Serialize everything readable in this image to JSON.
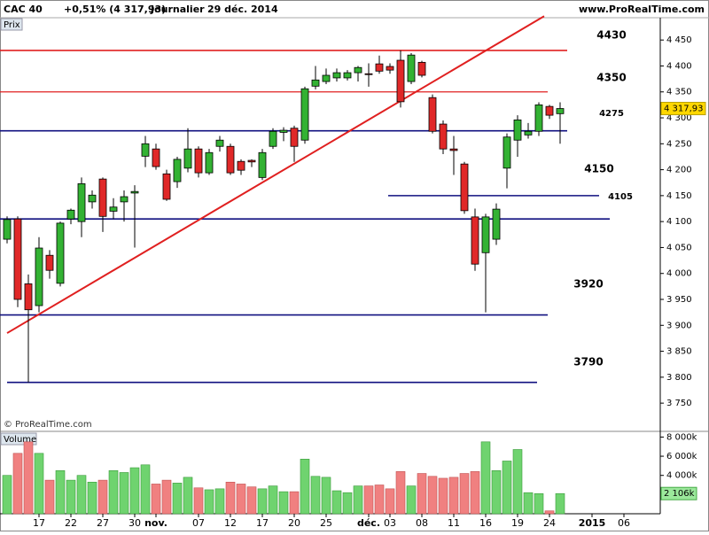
{
  "header": {
    "symbol": "CAC 40",
    "change": "+0,51% (4 317,93)",
    "period": "Journalier",
    "date": "29 déc. 2014",
    "site": "www.ProRealTime.com"
  },
  "chart_data": [
    {
      "type": "candlestick",
      "label": "Prix",
      "watermark": "© ProRealTime.com",
      "up_color": "#33b233",
      "down_color": "#e02828",
      "open": [
        4066,
        4105,
        3980,
        3938,
        4035,
        3981,
        4105,
        4100,
        4138,
        4182,
        4120,
        4138,
        4155,
        4226,
        4240,
        4192,
        4177,
        4203,
        4240,
        4194,
        4245,
        4245,
        4216,
        4218,
        4185,
        4245,
        4272,
        4280,
        4257,
        4361,
        4370,
        4377,
        4377,
        4387,
        4385,
        4404,
        4399,
        4411,
        4370,
        4407,
        4339,
        4288,
        4240,
        4211,
        4109,
        4040,
        4066,
        4203,
        4257,
        4267,
        4274,
        4322,
        4308,
        null,
        null,
        null,
        null,
        null,
        null
      ],
      "high": [
        4110,
        4110,
        3998,
        4070,
        4045,
        4100,
        4125,
        4185,
        4160,
        4185,
        4145,
        4160,
        4170,
        4265,
        4250,
        4200,
        4225,
        4280,
        4245,
        4240,
        4265,
        4250,
        4220,
        4220,
        4240,
        4280,
        4282,
        4285,
        4360,
        4400,
        4395,
        4395,
        4392,
        4400,
        4405,
        4420,
        4405,
        4430,
        4425,
        4410,
        4345,
        4295,
        4265,
        4215,
        4125,
        4115,
        4135,
        4270,
        4305,
        4290,
        4330,
        4325,
        4330,
        null,
        null,
        null,
        null,
        null,
        null
      ],
      "low": [
        4058,
        3935,
        3790,
        3925,
        3990,
        3975,
        4095,
        4070,
        4125,
        4080,
        4105,
        4100,
        4050,
        4205,
        4200,
        4140,
        4165,
        4195,
        4185,
        4190,
        4235,
        4190,
        4190,
        4205,
        4180,
        4240,
        4255,
        4215,
        4250,
        4355,
        4365,
        4370,
        4372,
        4370,
        4360,
        4385,
        4385,
        4320,
        4365,
        4378,
        4270,
        4230,
        4190,
        4115,
        4005,
        3925,
        4055,
        4164,
        4225,
        4260,
        4265,
        4298,
        4250,
        null,
        null,
        null,
        null,
        null,
        null
      ],
      "close": [
        4104,
        3950,
        3930,
        4049,
        4006,
        4097,
        4122,
        4173,
        4151,
        4110,
        4128,
        4148,
        4158,
        4250,
        4206,
        4143,
        4220,
        4240,
        4194,
        4233,
        4257,
        4194,
        4199,
        4215,
        4233,
        4274,
        4276,
        4245,
        4356,
        4373,
        4382,
        4387,
        4387,
        4397,
        4384,
        4390,
        4392,
        4331,
        4421,
        4382,
        4274,
        4240,
        4237,
        4121,
        4018,
        4109,
        4124,
        4263,
        4296,
        4274,
        4325,
        4305,
        4317.93,
        null,
        null,
        null,
        null,
        null,
        null
      ],
      "last_label": "4 317,93",
      "ylim": [
        3699,
        4493
      ],
      "yticks": [
        {
          "value": 3750,
          "label": "3 750"
        },
        {
          "value": 3800,
          "label": "3 800"
        },
        {
          "value": 3850,
          "label": "3 850"
        },
        {
          "value": 3900,
          "label": "3 900"
        },
        {
          "value": 3950,
          "label": "3 950"
        },
        {
          "value": 4000,
          "label": "4 000"
        },
        {
          "value": 4050,
          "label": "4 050"
        },
        {
          "value": 4100,
          "label": "4 100"
        },
        {
          "value": 4150,
          "label": "4 150"
        },
        {
          "value": 4200,
          "label": "4 200"
        },
        {
          "value": 4250,
          "label": "4 250"
        },
        {
          "value": 4300,
          "label": "4 300"
        },
        {
          "value": 4350,
          "label": "4 350"
        },
        {
          "value": 4400,
          "label": "4 400"
        },
        {
          "value": 4450,
          "label": "4 450"
        }
      ],
      "levels": [
        {
          "value": 4430,
          "color": "#e02020"
        },
        {
          "value": 4350,
          "color": "#e02020"
        },
        {
          "value": 4275,
          "color": "#101080"
        },
        {
          "value": 4150,
          "color": "#101080"
        },
        {
          "value": 4105,
          "color": "#101080"
        },
        {
          "value": 3920,
          "color": "#101080"
        },
        {
          "value": 3790,
          "color": "#101080"
        }
      ],
      "trendline": {
        "values": [
          3885,
          4496
        ],
        "color": "#e02020"
      }
    },
    {
      "type": "bar",
      "label": "Volume",
      "categories": [
        null,
        null,
        null,
        "17",
        null,
        null,
        "22",
        null,
        null,
        "27",
        null,
        null,
        "30",
        null,
        "nov.",
        null,
        null,
        null,
        "07",
        null,
        null,
        "12",
        null,
        null,
        "17",
        null,
        null,
        "20",
        null,
        null,
        "25",
        null,
        null,
        null,
        "déc.",
        null,
        "03",
        null,
        null,
        "08",
        null,
        null,
        "11",
        null,
        null,
        "16",
        null,
        null,
        "19",
        null,
        null,
        "24",
        null,
        null,
        null,
        "2015",
        null,
        null,
        "06"
      ],
      "values": [
        4000,
        6300,
        7500,
        6300,
        3500,
        4500,
        3500,
        4000,
        3300,
        3500,
        4500,
        4300,
        4800,
        5100,
        3100,
        3500,
        3200,
        3800,
        2700,
        2500,
        2600,
        3300,
        3100,
        2800,
        2600,
        2900,
        2300,
        2300,
        5700,
        3900,
        3800,
        2400,
        2200,
        2900,
        2900,
        3000,
        2600,
        4400,
        2900,
        4200,
        3900,
        3700,
        3800,
        4200,
        4400,
        7500,
        4500,
        5500,
        6700,
        2200,
        2100,
        300,
        2106,
        null,
        null,
        null,
        null,
        null,
        null
      ],
      "last_label": "2 106k",
      "up_color": "#6fd36f",
      "down_color": "#f08080",
      "ylim": [
        0,
        8500
      ],
      "yticks": [
        {
          "value": 4000,
          "label": "4 000k"
        },
        {
          "value": 6000,
          "label": "6 000k"
        },
        {
          "value": 8000,
          "label": "8 000k"
        }
      ]
    }
  ]
}
